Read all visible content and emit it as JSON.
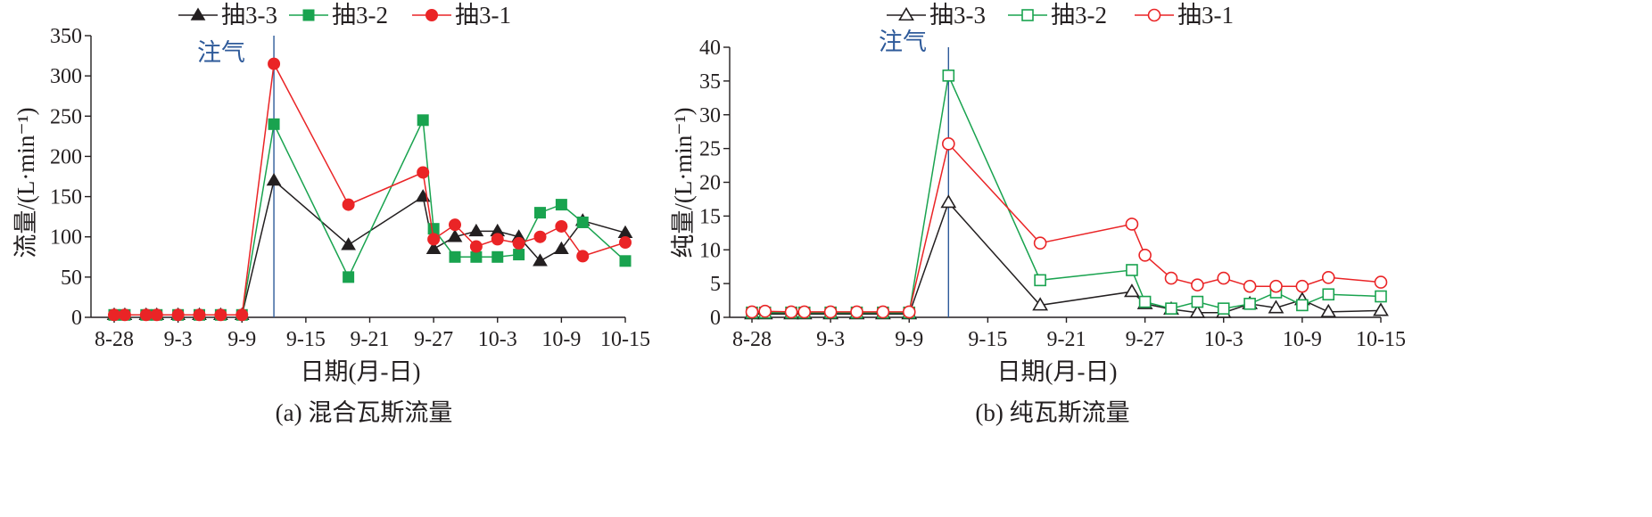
{
  "chart_data": [
    {
      "type": "line",
      "caption": "(a) 混合瓦斯流量",
      "xlabel": "日期(月-日)",
      "ylabel": "流量/(L·min⁻¹)",
      "xticks": [
        "8-28",
        "9-3",
        "9-9",
        "9-15",
        "9-21",
        "9-27",
        "10-3",
        "10-9",
        "10-15"
      ],
      "xlim": [
        "8-28",
        "10-15"
      ],
      "ylim": [
        0,
        350
      ],
      "yticks": [
        0,
        50,
        100,
        150,
        200,
        250,
        300,
        350
      ],
      "annotation": {
        "text": "注气",
        "date": "9-12",
        "color": "#2e5a9a"
      },
      "legend_position": "top",
      "series": [
        {
          "name": "抽3-3",
          "color": "#231f20",
          "marker": "triangle-filled",
          "points": [
            [
              "8-28",
              3
            ],
            [
              "8-29",
              3
            ],
            [
              "8-31",
              3
            ],
            [
              "9-1",
              3
            ],
            [
              "9-3",
              3
            ],
            [
              "9-5",
              3
            ],
            [
              "9-7",
              3
            ],
            [
              "9-9",
              3
            ],
            [
              "9-12",
              170
            ],
            [
              "9-19",
              90
            ],
            [
              "9-26",
              150
            ],
            [
              "9-27",
              85
            ],
            [
              "9-29",
              100
            ],
            [
              "10-1",
              107
            ],
            [
              "10-3",
              107
            ],
            [
              "10-5",
              100
            ],
            [
              "10-7",
              70
            ],
            [
              "10-9",
              85
            ],
            [
              "10-11",
              120
            ],
            [
              "10-15",
              105
            ]
          ]
        },
        {
          "name": "抽3-2",
          "color": "#19a34f",
          "marker": "square-filled",
          "points": [
            [
              "8-28",
              3
            ],
            [
              "8-29",
              3
            ],
            [
              "8-31",
              3
            ],
            [
              "9-1",
              3
            ],
            [
              "9-3",
              3
            ],
            [
              "9-5",
              3
            ],
            [
              "9-7",
              3
            ],
            [
              "9-9",
              3
            ],
            [
              "9-12",
              240
            ],
            [
              "9-19",
              50
            ],
            [
              "9-26",
              245
            ],
            [
              "9-27",
              110
            ],
            [
              "9-29",
              75
            ],
            [
              "10-1",
              75
            ],
            [
              "10-3",
              75
            ],
            [
              "10-5",
              78
            ],
            [
              "10-7",
              130
            ],
            [
              "10-9",
              140
            ],
            [
              "10-11",
              118
            ],
            [
              "10-15",
              70
            ]
          ]
        },
        {
          "name": "抽3-1",
          "color": "#ea2426",
          "marker": "circle-filled",
          "points": [
            [
              "8-28",
              3
            ],
            [
              "8-29",
              3
            ],
            [
              "8-31",
              3
            ],
            [
              "9-1",
              3
            ],
            [
              "9-3",
              3
            ],
            [
              "9-5",
              3
            ],
            [
              "9-7",
              3
            ],
            [
              "9-9",
              3
            ],
            [
              "9-12",
              315
            ],
            [
              "9-19",
              140
            ],
            [
              "9-26",
              180
            ],
            [
              "9-27",
              97
            ],
            [
              "9-29",
              115
            ],
            [
              "10-1",
              88
            ],
            [
              "10-3",
              97
            ],
            [
              "10-5",
              92
            ],
            [
              "10-7",
              100
            ],
            [
              "10-9",
              113
            ],
            [
              "10-11",
              76
            ],
            [
              "10-15",
              93
            ]
          ]
        }
      ]
    },
    {
      "type": "line",
      "caption": "(b) 纯瓦斯流量",
      "xlabel": "日期(月-日)",
      "ylabel": "纯量/(L·min⁻¹)",
      "xticks": [
        "8-28",
        "9-3",
        "9-9",
        "9-15",
        "9-21",
        "9-27",
        "10-3",
        "10-9",
        "10-15"
      ],
      "xlim": [
        "8-28",
        "10-15"
      ],
      "ylim": [
        0,
        40
      ],
      "yticks": [
        0,
        5,
        10,
        15,
        20,
        25,
        30,
        35,
        40
      ],
      "annotation": {
        "text": "注气",
        "date": "9-12",
        "color": "#2e5a9a"
      },
      "legend_position": "top",
      "series": [
        {
          "name": "抽3-3",
          "color": "#231f20",
          "marker": "triangle-open",
          "points": [
            [
              "8-28",
              0.5
            ],
            [
              "8-29",
              0.5
            ],
            [
              "8-31",
              0.5
            ],
            [
              "9-1",
              0.5
            ],
            [
              "9-3",
              0.5
            ],
            [
              "9-5",
              0.5
            ],
            [
              "9-7",
              0.5
            ],
            [
              "9-9",
              0.5
            ],
            [
              "9-12",
              17
            ],
            [
              "9-19",
              1.8
            ],
            [
              "9-26",
              3.8
            ],
            [
              "9-27",
              2
            ],
            [
              "9-29",
              1.2
            ],
            [
              "10-1",
              0.7
            ],
            [
              "10-3",
              0.7
            ],
            [
              "10-5",
              2
            ],
            [
              "10-7",
              1.4
            ],
            [
              "10-9",
              2.6
            ],
            [
              "10-11",
              0.8
            ],
            [
              "10-15",
              1
            ]
          ]
        },
        {
          "name": "抽3-2",
          "color": "#19a34f",
          "marker": "square-open",
          "points": [
            [
              "8-28",
              0.7
            ],
            [
              "8-29",
              0.7
            ],
            [
              "8-31",
              0.7
            ],
            [
              "9-1",
              0.7
            ],
            [
              "9-3",
              0.7
            ],
            [
              "9-5",
              0.7
            ],
            [
              "9-7",
              0.7
            ],
            [
              "9-9",
              0.7
            ],
            [
              "9-12",
              35.8
            ],
            [
              "9-19",
              5.5
            ],
            [
              "9-26",
              7
            ],
            [
              "9-27",
              2.3
            ],
            [
              "9-29",
              1.3
            ],
            [
              "10-1",
              2.3
            ],
            [
              "10-3",
              1.3
            ],
            [
              "10-5",
              2
            ],
            [
              "10-7",
              3.7
            ],
            [
              "10-9",
              1.8
            ],
            [
              "10-11",
              3.4
            ],
            [
              "10-15",
              3.1
            ]
          ]
        },
        {
          "name": "抽3-1",
          "color": "#ea2426",
          "marker": "circle-open",
          "points": [
            [
              "8-28",
              0.8
            ],
            [
              "8-29",
              0.9
            ],
            [
              "8-31",
              0.8
            ],
            [
              "9-1",
              0.8
            ],
            [
              "9-3",
              0.8
            ],
            [
              "9-5",
              0.8
            ],
            [
              "9-7",
              0.8
            ],
            [
              "9-9",
              0.8
            ],
            [
              "9-12",
              25.7
            ],
            [
              "9-19",
              11
            ],
            [
              "9-26",
              13.8
            ],
            [
              "9-27",
              9.2
            ],
            [
              "9-29",
              5.8
            ],
            [
              "10-1",
              4.8
            ],
            [
              "10-3",
              5.8
            ],
            [
              "10-5",
              4.6
            ],
            [
              "10-7",
              4.6
            ],
            [
              "10-9",
              4.6
            ],
            [
              "10-11",
              5.9
            ],
            [
              "10-15",
              5.2
            ]
          ]
        }
      ]
    }
  ]
}
